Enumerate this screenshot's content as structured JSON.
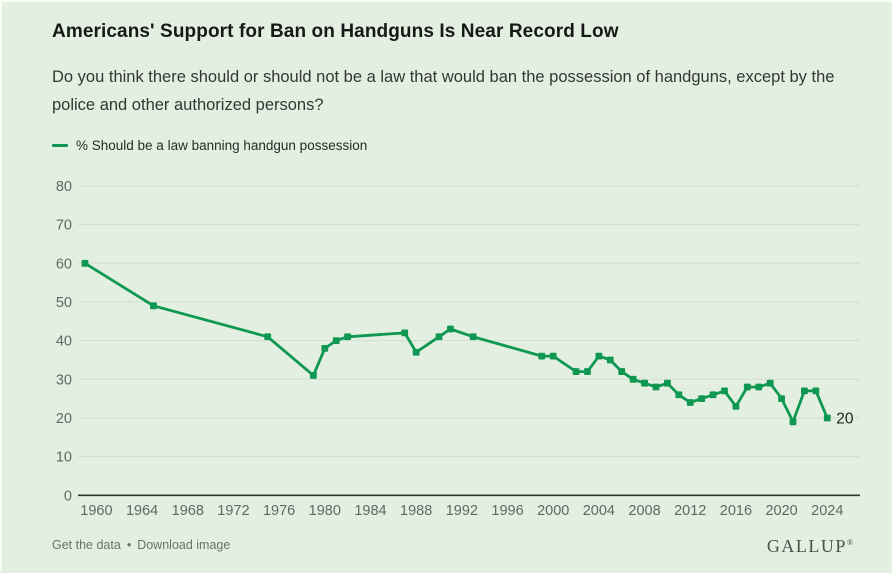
{
  "header": {
    "title": "Americans' Support for Ban on Handguns Is Near Record Low",
    "subtitle": "Do you think there should or should not be a law that would ban the possession of handguns, except by the police and other authorized persons?"
  },
  "legend": {
    "label": "% Should be a law banning handgun possession",
    "color": "#0f9851"
  },
  "chart_data": {
    "type": "line",
    "title": "Americans' Support for Ban on Handguns Is Near Record Low",
    "xlabel": "",
    "ylabel": "",
    "xlim": [
      1959,
      2024
    ],
    "ylim": [
      0,
      80
    ],
    "grid": "horizontal",
    "legend_position": "top-left",
    "x_ticks": [
      1960,
      1964,
      1968,
      1972,
      1976,
      1980,
      1984,
      1988,
      1992,
      1996,
      2000,
      2004,
      2008,
      2012,
      2016,
      2020,
      2024
    ],
    "y_ticks": [
      0,
      10,
      20,
      30,
      40,
      50,
      60,
      70,
      80
    ],
    "series": [
      {
        "name": "% Should be a law banning handgun possession",
        "color": "#0f9851",
        "points": [
          [
            1959,
            60
          ],
          [
            1965,
            49
          ],
          [
            1975,
            41
          ],
          [
            1979,
            31
          ],
          [
            1980,
            38
          ],
          [
            1981,
            40
          ],
          [
            1982,
            41
          ],
          [
            1987,
            42
          ],
          [
            1988,
            37
          ],
          [
            1990,
            41
          ],
          [
            1991,
            43
          ],
          [
            1993,
            41
          ],
          [
            1999,
            36
          ],
          [
            2000,
            36
          ],
          [
            2002,
            32
          ],
          [
            2003,
            32
          ],
          [
            2004,
            36
          ],
          [
            2005,
            35
          ],
          [
            2006,
            32
          ],
          [
            2007,
            30
          ],
          [
            2008,
            29
          ],
          [
            2009,
            28
          ],
          [
            2010,
            29
          ],
          [
            2011,
            26
          ],
          [
            2012,
            24
          ],
          [
            2013,
            25
          ],
          [
            2014,
            26
          ],
          [
            2015,
            27
          ],
          [
            2016,
            23
          ],
          [
            2017,
            28
          ],
          [
            2018,
            28
          ],
          [
            2019,
            29
          ],
          [
            2020,
            25
          ],
          [
            2021,
            19
          ],
          [
            2022,
            27
          ],
          [
            2023,
            27
          ],
          [
            2024,
            20
          ]
        ]
      }
    ],
    "end_label": "20"
  },
  "footer": {
    "link_get_data": "Get the data",
    "separator": "•",
    "link_download": "Download image",
    "brand": "GALLUP",
    "brand_mark": "®"
  },
  "colors": {
    "background": "#e3efe1",
    "line": "#0f9851",
    "grid": "#d2decf",
    "zero_axis": "#30352f",
    "tick_text": "#5e6963",
    "end_label_text": "#20261f"
  }
}
